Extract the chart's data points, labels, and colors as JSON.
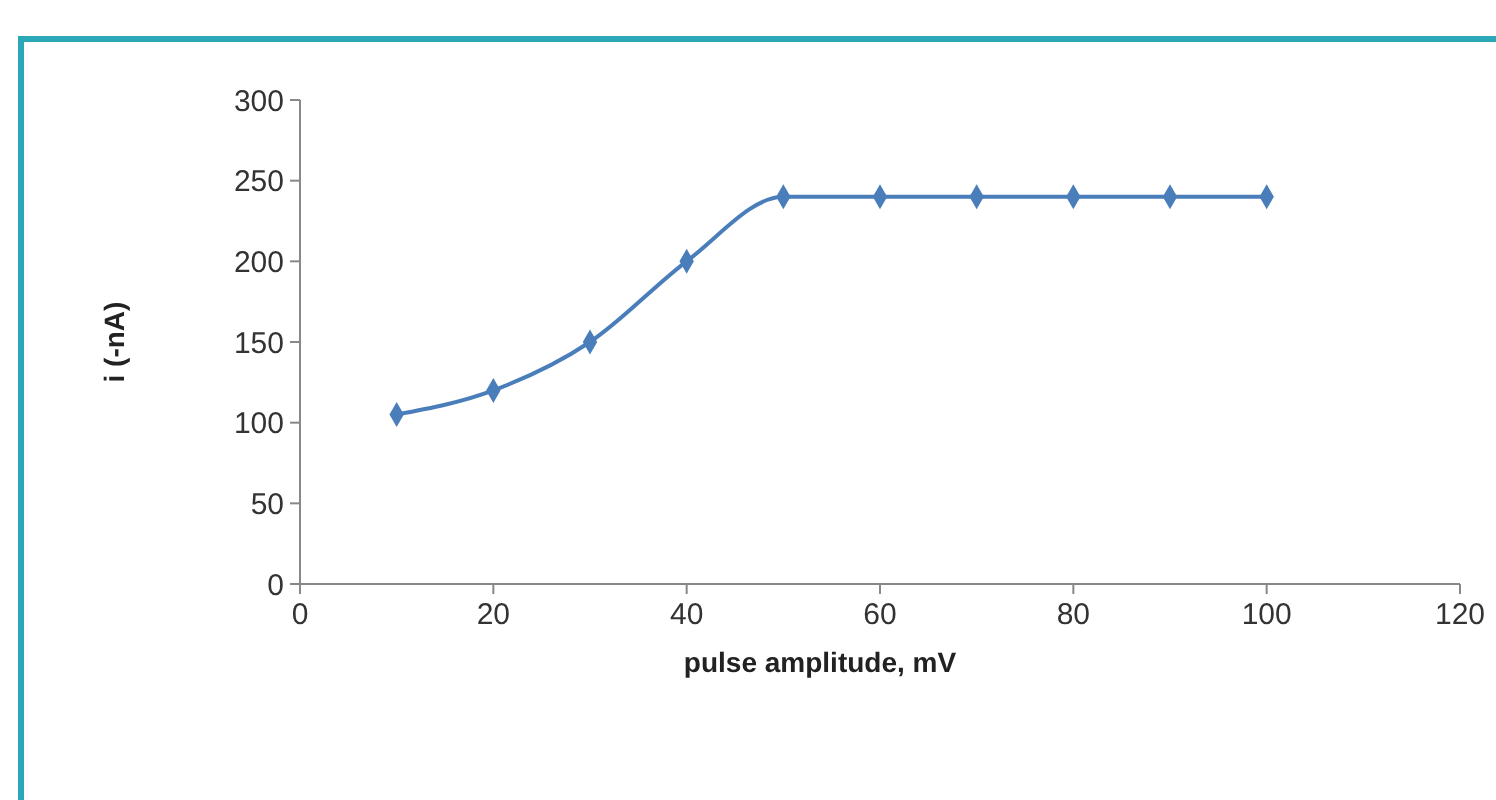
{
  "chart_data": {
    "type": "line",
    "xlabel": "pulse amplitude, mV",
    "ylabel": "i (-nA)",
    "x": [
      10,
      20,
      30,
      40,
      50,
      60,
      70,
      80,
      90,
      100
    ],
    "series": [
      {
        "color": "#4a7ebb",
        "values": [
          105,
          120,
          150,
          200,
          240,
          240,
          240,
          240,
          240,
          240
        ]
      }
    ],
    "xlim": [
      0,
      120
    ],
    "xticks": [
      0,
      20,
      40,
      60,
      80,
      100,
      120
    ],
    "ylim": [
      0,
      300
    ],
    "yticks": [
      0,
      50,
      100,
      150,
      200,
      250,
      300
    ],
    "grid": false,
    "marker": "diamond",
    "line_style": "solid"
  }
}
